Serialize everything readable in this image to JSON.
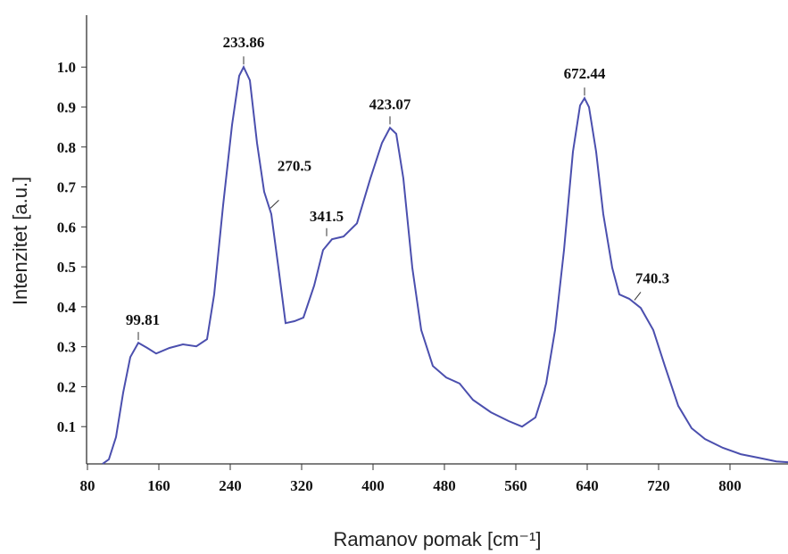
{
  "chart_data": {
    "type": "line",
    "x_label": "Ramanov pomak [cm⁻¹]",
    "y_label": "Intenzitet [a.u.]",
    "xlim": [
      79,
      865
    ],
    "ylim": [
      0,
      1.13
    ],
    "xticks": [
      80,
      160,
      240,
      320,
      400,
      480,
      560,
      640,
      720,
      800,
      880
    ],
    "yticks": [
      0.1,
      0.2,
      0.3,
      0.4,
      0.5,
      0.6,
      0.7,
      0.8,
      0.9,
      {
        "value": 1,
        "label": "1.0"
      }
    ],
    "series": [
      {
        "color": "#4b4fae",
        "x": [
          97,
          104,
          112,
          120,
          128,
          137,
          147,
          157,
          172,
          187,
          202,
          214,
          222,
          232,
          242,
          250,
          255,
          262,
          270,
          278,
          286,
          294,
          302,
          312,
          322,
          334,
          344,
          354,
          367,
          382,
          397,
          410,
          419,
          426,
          434,
          444,
          454,
          467,
          482,
          497,
          512,
          532,
          552,
          567,
          582,
          594,
          604,
          614,
          624,
          632,
          637,
          642,
          650,
          658,
          668,
          676,
          687,
          700,
          714,
          727,
          742,
          757,
          772,
          792,
          812,
          832,
          852,
          865
        ],
        "values": [
          0.007,
          0.018,
          0.074,
          0.185,
          0.274,
          0.31,
          0.297,
          0.283,
          0.297,
          0.306,
          0.301,
          0.319,
          0.431,
          0.654,
          0.855,
          0.978,
          1.0,
          0.967,
          0.81,
          0.688,
          0.632,
          0.498,
          0.359,
          0.364,
          0.373,
          0.453,
          0.542,
          0.569,
          0.576,
          0.609,
          0.721,
          0.81,
          0.848,
          0.833,
          0.721,
          0.498,
          0.342,
          0.252,
          0.223,
          0.208,
          0.167,
          0.136,
          0.114,
          0.1,
          0.123,
          0.208,
          0.342,
          0.542,
          0.788,
          0.904,
          0.922,
          0.9,
          0.788,
          0.632,
          0.498,
          0.431,
          0.42,
          0.397,
          0.342,
          0.252,
          0.152,
          0.096,
          0.069,
          0.047,
          0.031,
          0.022,
          0.013,
          0.011
        ]
      }
    ],
    "annotations": [
      {
        "text": "99.81",
        "x": 137,
        "y": 0.31
      },
      {
        "text": "233.86",
        "x": 255,
        "y": 1.0
      },
      {
        "text": "270.5",
        "x": 285,
        "y": 0.64
      },
      {
        "text": "341.5",
        "x": 348,
        "y": 0.57
      },
      {
        "text": "423.07",
        "x": 419,
        "y": 0.85
      },
      {
        "text": "672.44",
        "x": 637,
        "y": 0.922
      },
      {
        "text": "740.3",
        "x": 693,
        "y": 0.41
      }
    ]
  }
}
